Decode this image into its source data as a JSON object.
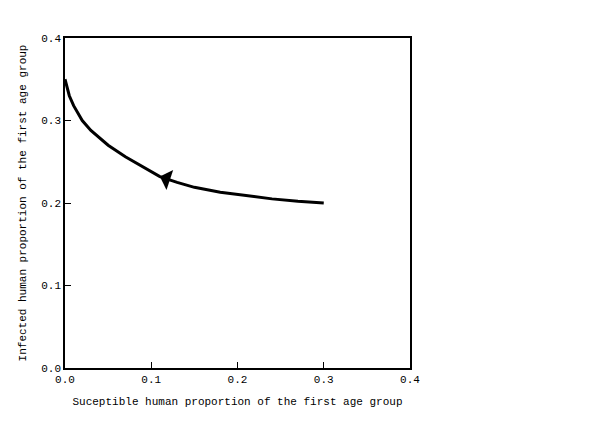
{
  "chart_data": {
    "type": "line",
    "x_label": "Suceptible human proportion of the first age group",
    "y_label": "Infected human proportion of the first age group",
    "x": [
      0,
      0.005,
      0.01,
      0.02,
      0.03,
      0.05,
      0.07,
      0.09,
      0.11,
      0.13,
      0.15,
      0.18,
      0.21,
      0.24,
      0.27,
      0.3
    ],
    "values": [
      0.35,
      0.33,
      0.318,
      0.3,
      0.288,
      0.27,
      0.256,
      0.244,
      0.232,
      0.225,
      0.219,
      0.213,
      0.209,
      0.205,
      0.202,
      0.2
    ],
    "color": "#000000",
    "xlim": [
      0,
      0.4
    ],
    "ylim": [
      0,
      0.4
    ],
    "xticks": [
      {
        "value": 0,
        "label": "0.0"
      },
      {
        "value": 0.1,
        "label": "0.1"
      },
      {
        "value": 0.2,
        "label": "0.2"
      },
      {
        "value": 0.3,
        "label": "0.3"
      },
      {
        "value": 0.4,
        "label": "0.4"
      }
    ],
    "yticks": [
      {
        "value": 0,
        "label": "0.0"
      },
      {
        "value": 0.1,
        "label": "0.1"
      },
      {
        "value": 0.2,
        "label": "0.2"
      },
      {
        "value": 0.3,
        "label": "0.3"
      },
      {
        "value": 0.4,
        "label": "0.4"
      }
    ],
    "grid": false
  }
}
